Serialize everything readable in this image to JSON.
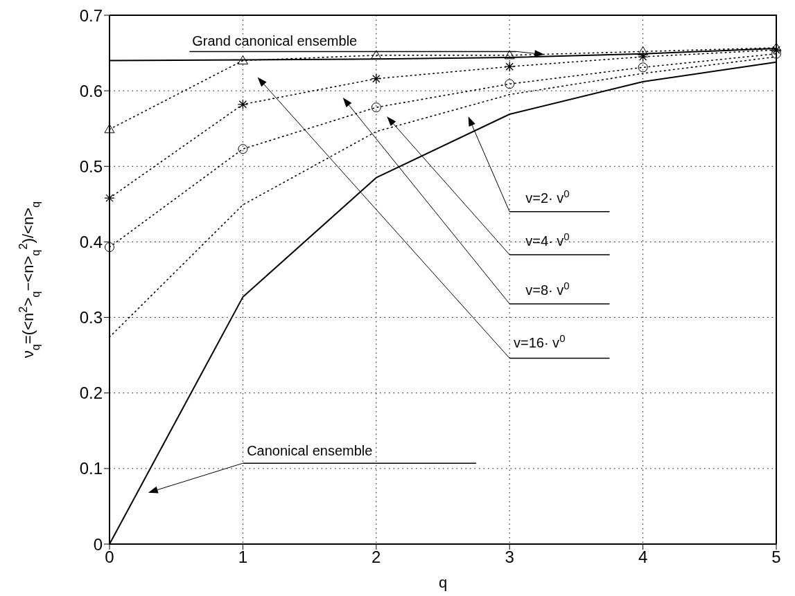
{
  "chart_data": {
    "type": "line",
    "xlabel": "q",
    "ylabel": "ν$_{q}$=(<n$^{2}$>$_{q}$−<n>$_{q}$$^{2}$)/<n>$_{q}$",
    "x": [
      0,
      1,
      2,
      3,
      4,
      5
    ],
    "series": [
      {
        "color": "#000000",
        "values": [
          0.64,
          0.641,
          0.642,
          0.644,
          0.649,
          0.656
        ],
        "line_style": "solid",
        "marker": "none"
      },
      {
        "color": "#000000",
        "values": [
          0,
          0.327,
          0.485,
          0.569,
          0.612,
          0.638
        ],
        "line_style": "solid",
        "marker": "none"
      },
      {
        "color": "#000000",
        "values": [
          0.549,
          0.64,
          0.647,
          0.647,
          0.652,
          0.657
        ],
        "line_style": "dotted",
        "marker": "triangle"
      },
      {
        "color": "#000000",
        "values": [
          0.458,
          0.582,
          0.616,
          0.632,
          0.645,
          0.654
        ],
        "line_style": "dotted",
        "marker": "cross"
      },
      {
        "color": "#000000",
        "values": [
          0.393,
          0.523,
          0.578,
          0.609,
          0.631,
          0.649
        ],
        "line_style": "dotted",
        "marker": "circle"
      },
      {
        "color": "#000000",
        "values": [
          0.274,
          0.449,
          0.546,
          0.595,
          0.623,
          0.645
        ],
        "line_style": "dotted",
        "marker": "none"
      }
    ],
    "annotations": [
      "Grand canonical ensemble",
      "Canonical ensemble",
      "v=2· v$^{0}$",
      "v=4· v$^{0}$",
      "v=8· v$^{0}$",
      "v=16· v$^{0}$"
    ],
    "xlim": [
      0,
      5
    ],
    "xticks": [
      0,
      1,
      2,
      3,
      4,
      5
    ],
    "ylim": [
      0,
      0.7
    ],
    "yticks": [
      0,
      0.1,
      0.2,
      0.3,
      0.4,
      0.5,
      0.6,
      0.7
    ],
    "grid": true,
    "legend": false
  }
}
